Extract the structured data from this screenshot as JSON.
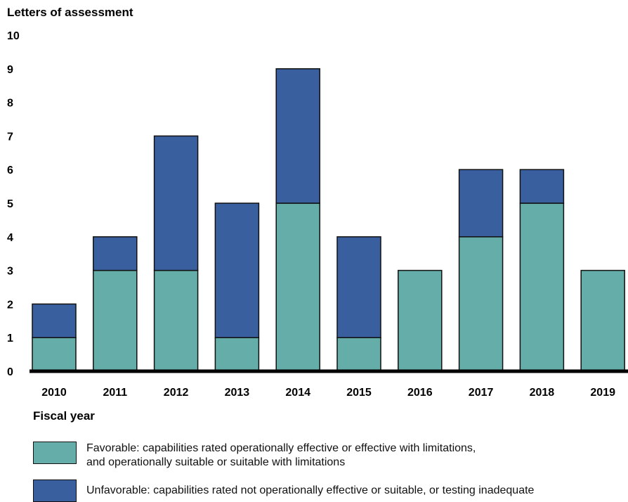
{
  "chart_data": {
    "type": "bar",
    "stacked": true,
    "ylabel": "Letters of assessment",
    "xlabel": "Fiscal year",
    "ylim": [
      0,
      10
    ],
    "yticks": [
      "0",
      "1",
      "2",
      "3",
      "4",
      "5",
      "6",
      "7",
      "8",
      "9",
      "10"
    ],
    "categories": [
      "2010",
      "2011",
      "2012",
      "2013",
      "2014",
      "2015",
      "2016",
      "2017",
      "2018",
      "2019"
    ],
    "series": [
      {
        "name": "Favorable",
        "values": [
          1,
          3,
          3,
          1,
          5,
          1,
          3,
          4,
          5,
          3
        ]
      },
      {
        "name": "Unfavorable",
        "values": [
          1,
          1,
          4,
          4,
          4,
          3,
          0,
          2,
          1,
          0
        ]
      }
    ],
    "colors": {
      "favorable": "#64ada8",
      "unfavorable": "#3a5f9e",
      "outline": "#111111"
    },
    "grid": false
  },
  "legend": {
    "favorable": {
      "line1": "Favorable: capabilities rated operationally effective or effective with limitations,",
      "line2": "and operationally suitable or suitable with limitations"
    },
    "unfavorable": {
      "line1": "Unfavorable: capabilities rated not operationally effective or suitable, or testing inadequate"
    }
  }
}
